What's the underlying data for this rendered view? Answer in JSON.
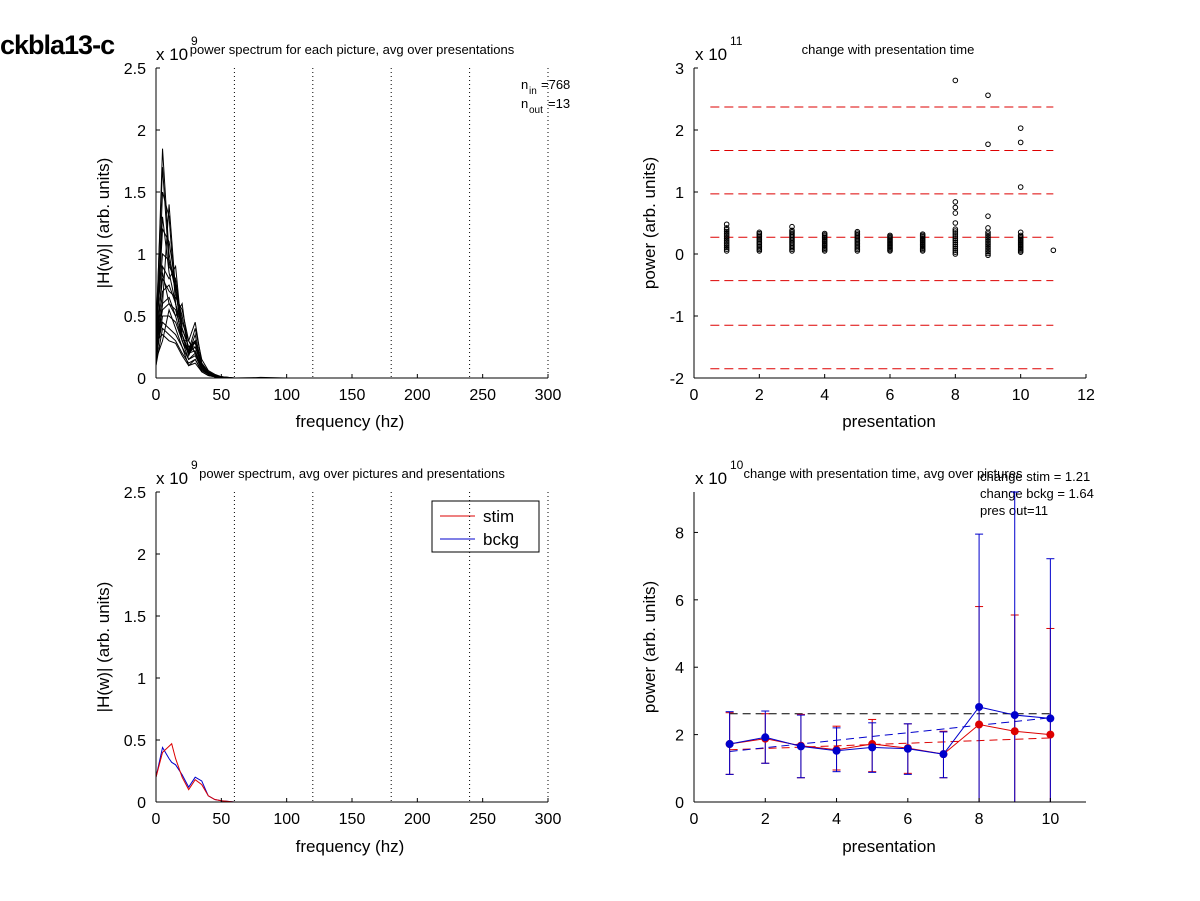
{
  "figure_label": "ckbla13-c",
  "chart_data": [
    {
      "id": "tl",
      "type": "line",
      "title": "power spectrum for each picture, avg over presentations",
      "xlabel": "frequency (hz)",
      "ylabel": "|H(w)| (arb. units)",
      "xlim": [
        0,
        300
      ],
      "ylim": [
        0,
        2.5
      ],
      "xticks": [
        0,
        50,
        100,
        150,
        200,
        250,
        300
      ],
      "yticks": [
        0,
        0.5,
        1,
        1.5,
        2,
        2.5
      ],
      "ytick_labels": [
        "0",
        "0.5",
        "1",
        "1.5",
        "2",
        "2.5"
      ],
      "y_multiplier": {
        "base": "x 10",
        "exponent": "9"
      },
      "vlines_dotted": [
        60,
        120,
        180,
        240,
        300
      ],
      "annotations": [
        {
          "main": "n",
          "sub": "in",
          "value": "=768"
        },
        {
          "main": "n",
          "sub": "out",
          "value": "=13"
        }
      ],
      "series_note": "many black traces, one per picture",
      "freqs": [
        0,
        5,
        10,
        15,
        20,
        25,
        30,
        35,
        40,
        45,
        50,
        55,
        60,
        70,
        80,
        100,
        150,
        200,
        250,
        300
      ],
      "series": [
        {
          "values": [
            0.3,
            1.85,
            1.0,
            0.7,
            0.35,
            0.2,
            0.3,
            0.1,
            0.05,
            0.02,
            0.01,
            0.005,
            0,
            0,
            0,
            0,
            0,
            0,
            0,
            0
          ]
        },
        {
          "values": [
            0.4,
            1.7,
            0.9,
            0.8,
            0.4,
            0.25,
            0.25,
            0.12,
            0.05,
            0.02,
            0.01,
            0.005,
            0,
            0.002,
            0,
            0,
            0,
            0,
            0,
            0
          ]
        },
        {
          "values": [
            0.2,
            1.5,
            1.3,
            0.6,
            0.3,
            0.2,
            0.35,
            0.1,
            0.04,
            0.02,
            0.01,
            0,
            0,
            0,
            0,
            0,
            0,
            0,
            0,
            0
          ]
        },
        {
          "values": [
            0.25,
            1.2,
            1.1,
            0.75,
            0.45,
            0.3,
            0.2,
            0.08,
            0.04,
            0.02,
            0.01,
            0,
            0,
            0,
            0.005,
            0,
            0,
            0,
            0,
            0
          ]
        },
        {
          "values": [
            0.35,
            1.0,
            0.95,
            0.7,
            0.5,
            0.22,
            0.4,
            0.15,
            0.06,
            0.03,
            0.01,
            0.005,
            0,
            0,
            0,
            0,
            0,
            0,
            0,
            0
          ]
        },
        {
          "values": [
            0.15,
            0.9,
            0.8,
            0.9,
            0.35,
            0.18,
            0.3,
            0.12,
            0.05,
            0.02,
            0.01,
            0,
            0,
            0,
            0,
            0,
            0,
            0,
            0,
            0
          ]
        },
        {
          "values": [
            0.3,
            0.8,
            0.7,
            0.65,
            0.55,
            0.3,
            0.2,
            0.1,
            0.04,
            0.02,
            0.01,
            0,
            0,
            0,
            0,
            0,
            0,
            0,
            0,
            0
          ]
        },
        {
          "values": [
            0.2,
            0.7,
            0.75,
            0.6,
            0.4,
            0.25,
            0.28,
            0.11,
            0.05,
            0.02,
            0.01,
            0,
            0,
            0,
            0,
            0,
            0,
            0,
            0,
            0
          ]
        },
        {
          "values": [
            0.1,
            0.6,
            0.65,
            0.5,
            0.3,
            0.2,
            0.22,
            0.09,
            0.04,
            0.02,
            0.01,
            0,
            0,
            0,
            0,
            0,
            0,
            0,
            0,
            0
          ]
        },
        {
          "values": [
            0.25,
            0.55,
            0.6,
            0.55,
            0.35,
            0.22,
            0.3,
            0.1,
            0.05,
            0.02,
            0.01,
            0,
            0,
            0,
            0,
            0,
            0,
            0,
            0,
            0
          ]
        },
        {
          "values": [
            0.15,
            0.5,
            0.5,
            0.45,
            0.3,
            0.15,
            0.2,
            0.08,
            0.03,
            0.01,
            0.005,
            0,
            0,
            0,
            0,
            0,
            0,
            0,
            0,
            0
          ]
        },
        {
          "values": [
            0.2,
            0.45,
            0.4,
            0.35,
            0.25,
            0.15,
            0.18,
            0.07,
            0.03,
            0.01,
            0.005,
            0,
            0,
            0,
            0,
            0,
            0,
            0,
            0,
            0
          ]
        },
        {
          "values": [
            0.1,
            0.4,
            0.35,
            0.3,
            0.2,
            0.12,
            0.15,
            0.06,
            0.03,
            0.01,
            0.005,
            0,
            0,
            0,
            0,
            0,
            0,
            0,
            0,
            0
          ]
        },
        {
          "values": [
            0.3,
            0.35,
            0.3,
            0.28,
            0.18,
            0.1,
            0.12,
            0.05,
            0.02,
            0.01,
            0,
            0,
            0,
            0,
            0,
            0,
            0,
            0,
            0,
            0
          ]
        },
        {
          "values": [
            0.2,
            0.6,
            1.4,
            0.7,
            0.4,
            0.25,
            0.3,
            0.1,
            0.05,
            0.02,
            0.01,
            0,
            0,
            0,
            0,
            0,
            0,
            0,
            0,
            0
          ]
        },
        {
          "values": [
            0.35,
            1.3,
            0.85,
            0.6,
            0.3,
            0.3,
            0.45,
            0.12,
            0.05,
            0.02,
            0.01,
            0,
            0,
            0,
            0,
            0,
            0,
            0,
            0,
            0
          ]
        },
        {
          "values": [
            0.15,
            0.3,
            0.55,
            0.4,
            0.25,
            0.1,
            0.15,
            0.05,
            0.02,
            0.01,
            0,
            0,
            0,
            0,
            0,
            0,
            0,
            0,
            0,
            0
          ]
        },
        {
          "values": [
            0.25,
            0.85,
            0.6,
            0.5,
            0.6,
            0.2,
            0.25,
            0.1,
            0.04,
            0.02,
            0.01,
            0,
            0,
            0,
            0,
            0,
            0,
            0,
            0,
            0
          ]
        }
      ]
    },
    {
      "id": "tr",
      "type": "scatter",
      "title": "change with presentation time",
      "xlabel": "presentation",
      "ylabel": "power (arb. units)",
      "xlim": [
        0,
        12
      ],
      "ylim": [
        -2,
        3
      ],
      "xticks": [
        0,
        2,
        4,
        6,
        8,
        10,
        12
      ],
      "yticks": [
        -2,
        -1,
        0,
        1,
        2,
        3
      ],
      "ytick_labels": [
        "-2",
        "-1",
        "0",
        "1",
        "2",
        "3"
      ],
      "y_multiplier": {
        "base": "x 10",
        "exponent": "11"
      },
      "hlines_dashed_red": [
        2.37,
        1.67,
        0.97,
        0.27,
        -0.43,
        -1.15,
        -1.85
      ],
      "point_columns": [
        {
          "x": 1,
          "low": 0.05,
          "high": 0.42,
          "extra": [
            0.48
          ]
        },
        {
          "x": 2,
          "low": 0.05,
          "high": 0.35,
          "extra": []
        },
        {
          "x": 3,
          "low": 0.05,
          "high": 0.38,
          "extra": [
            0.44
          ]
        },
        {
          "x": 4,
          "low": 0.05,
          "high": 0.33,
          "extra": []
        },
        {
          "x": 5,
          "low": 0.05,
          "high": 0.36,
          "extra": []
        },
        {
          "x": 6,
          "low": 0.05,
          "high": 0.3,
          "extra": []
        },
        {
          "x": 7,
          "low": 0.05,
          "high": 0.32,
          "extra": []
        },
        {
          "x": 8,
          "low": 0.0,
          "high": 0.4,
          "extra": [
            2.8,
            0.84,
            0.75,
            0.66,
            0.5
          ]
        },
        {
          "x": 9,
          "low": -0.02,
          "high": 0.35,
          "extra": [
            2.56,
            1.77,
            0.61,
            0.42
          ]
        },
        {
          "x": 10,
          "low": 0.03,
          "high": 0.3,
          "extra": [
            2.03,
            1.8,
            1.08,
            0.35
          ]
        },
        {
          "x": 11,
          "low": 0.06,
          "high": 0.06,
          "extra": []
        }
      ]
    },
    {
      "id": "bl",
      "type": "line",
      "title": "power spectrum, avg over pictures and presentations",
      "xlabel": "frequency (hz)",
      "ylabel": "|H(w)| (arb. units)",
      "xlim": [
        0,
        300
      ],
      "ylim": [
        0,
        2.5
      ],
      "xticks": [
        0,
        50,
        100,
        150,
        200,
        250,
        300
      ],
      "yticks": [
        0,
        0.5,
        1,
        1.5,
        2,
        2.5
      ],
      "ytick_labels": [
        "0",
        "0.5",
        "1",
        "1.5",
        "2",
        "2.5"
      ],
      "y_multiplier": {
        "base": "x 10",
        "exponent": "9"
      },
      "vlines_dotted": [
        60,
        120,
        180,
        240,
        300
      ],
      "legend": {
        "position": "top-right",
        "entries": [
          "stim",
          "bckg"
        ]
      },
      "x": [
        0,
        5,
        10,
        12,
        15,
        20,
        25,
        30,
        35,
        40,
        45,
        50,
        60,
        80,
        100,
        150,
        200,
        250,
        300
      ],
      "series": [
        {
          "name": "stim",
          "color": "#dd0000",
          "values": [
            0.2,
            0.4,
            0.45,
            0.47,
            0.35,
            0.2,
            0.1,
            0.18,
            0.14,
            0.05,
            0.02,
            0.01,
            0,
            0,
            0,
            0,
            0,
            0,
            0
          ]
        },
        {
          "name": "bckg",
          "color": "#0000cc",
          "values": [
            0.2,
            0.44,
            0.35,
            0.32,
            0.3,
            0.22,
            0.12,
            0.2,
            0.17,
            0.05,
            0.02,
            0.01,
            0,
            0,
            0,
            0,
            0,
            0,
            0
          ]
        }
      ]
    },
    {
      "id": "br",
      "type": "line",
      "title": "change with presentation time, avg over pictures",
      "xlabel": "presentation",
      "ylabel": "power (arb. units)",
      "xlim": [
        0,
        11
      ],
      "ylim": [
        0,
        9.2
      ],
      "xticks": [
        0,
        2,
        4,
        6,
        8,
        10
      ],
      "yticks": [
        0,
        2,
        4,
        6,
        8
      ],
      "ytick_labels": [
        "0",
        "2",
        "4",
        "6",
        "8"
      ],
      "y_multiplier": {
        "base": "x 10",
        "exponent": "10"
      },
      "annotations": [
        "change stim = 1.21",
        "change bckg = 1.64",
        "pres out=11"
      ],
      "black_dashed_hline": 2.62,
      "x": [
        1,
        2,
        3,
        4,
        5,
        6,
        7,
        8,
        9,
        10
      ],
      "series": [
        {
          "name": "stim",
          "color": "#dd0000",
          "values": [
            1.72,
            1.88,
            1.67,
            1.55,
            1.72,
            1.6,
            1.42,
            2.3,
            2.1,
            2.0
          ],
          "err_low": [
            0.82,
            1.15,
            0.72,
            0.95,
            0.9,
            0.85,
            0.72,
            0.0,
            0.0,
            0.0
          ],
          "err_high": [
            2.65,
            2.62,
            2.6,
            2.25,
            2.45,
            2.32,
            2.1,
            5.8,
            5.55,
            5.15
          ],
          "trend": [
            1.55,
            1.9
          ]
        },
        {
          "name": "bckg",
          "color": "#0000cc",
          "values": [
            1.72,
            1.92,
            1.65,
            1.52,
            1.62,
            1.58,
            1.42,
            2.82,
            2.58,
            2.48
          ],
          "err_low": [
            0.82,
            1.15,
            0.72,
            0.9,
            0.88,
            0.82,
            0.72,
            0.0,
            0.0,
            0.0
          ],
          "err_high": [
            2.68,
            2.7,
            2.58,
            2.2,
            2.35,
            2.32,
            2.08,
            7.95,
            9.2,
            7.22
          ],
          "trend": [
            1.5,
            2.5
          ]
        }
      ]
    }
  ]
}
